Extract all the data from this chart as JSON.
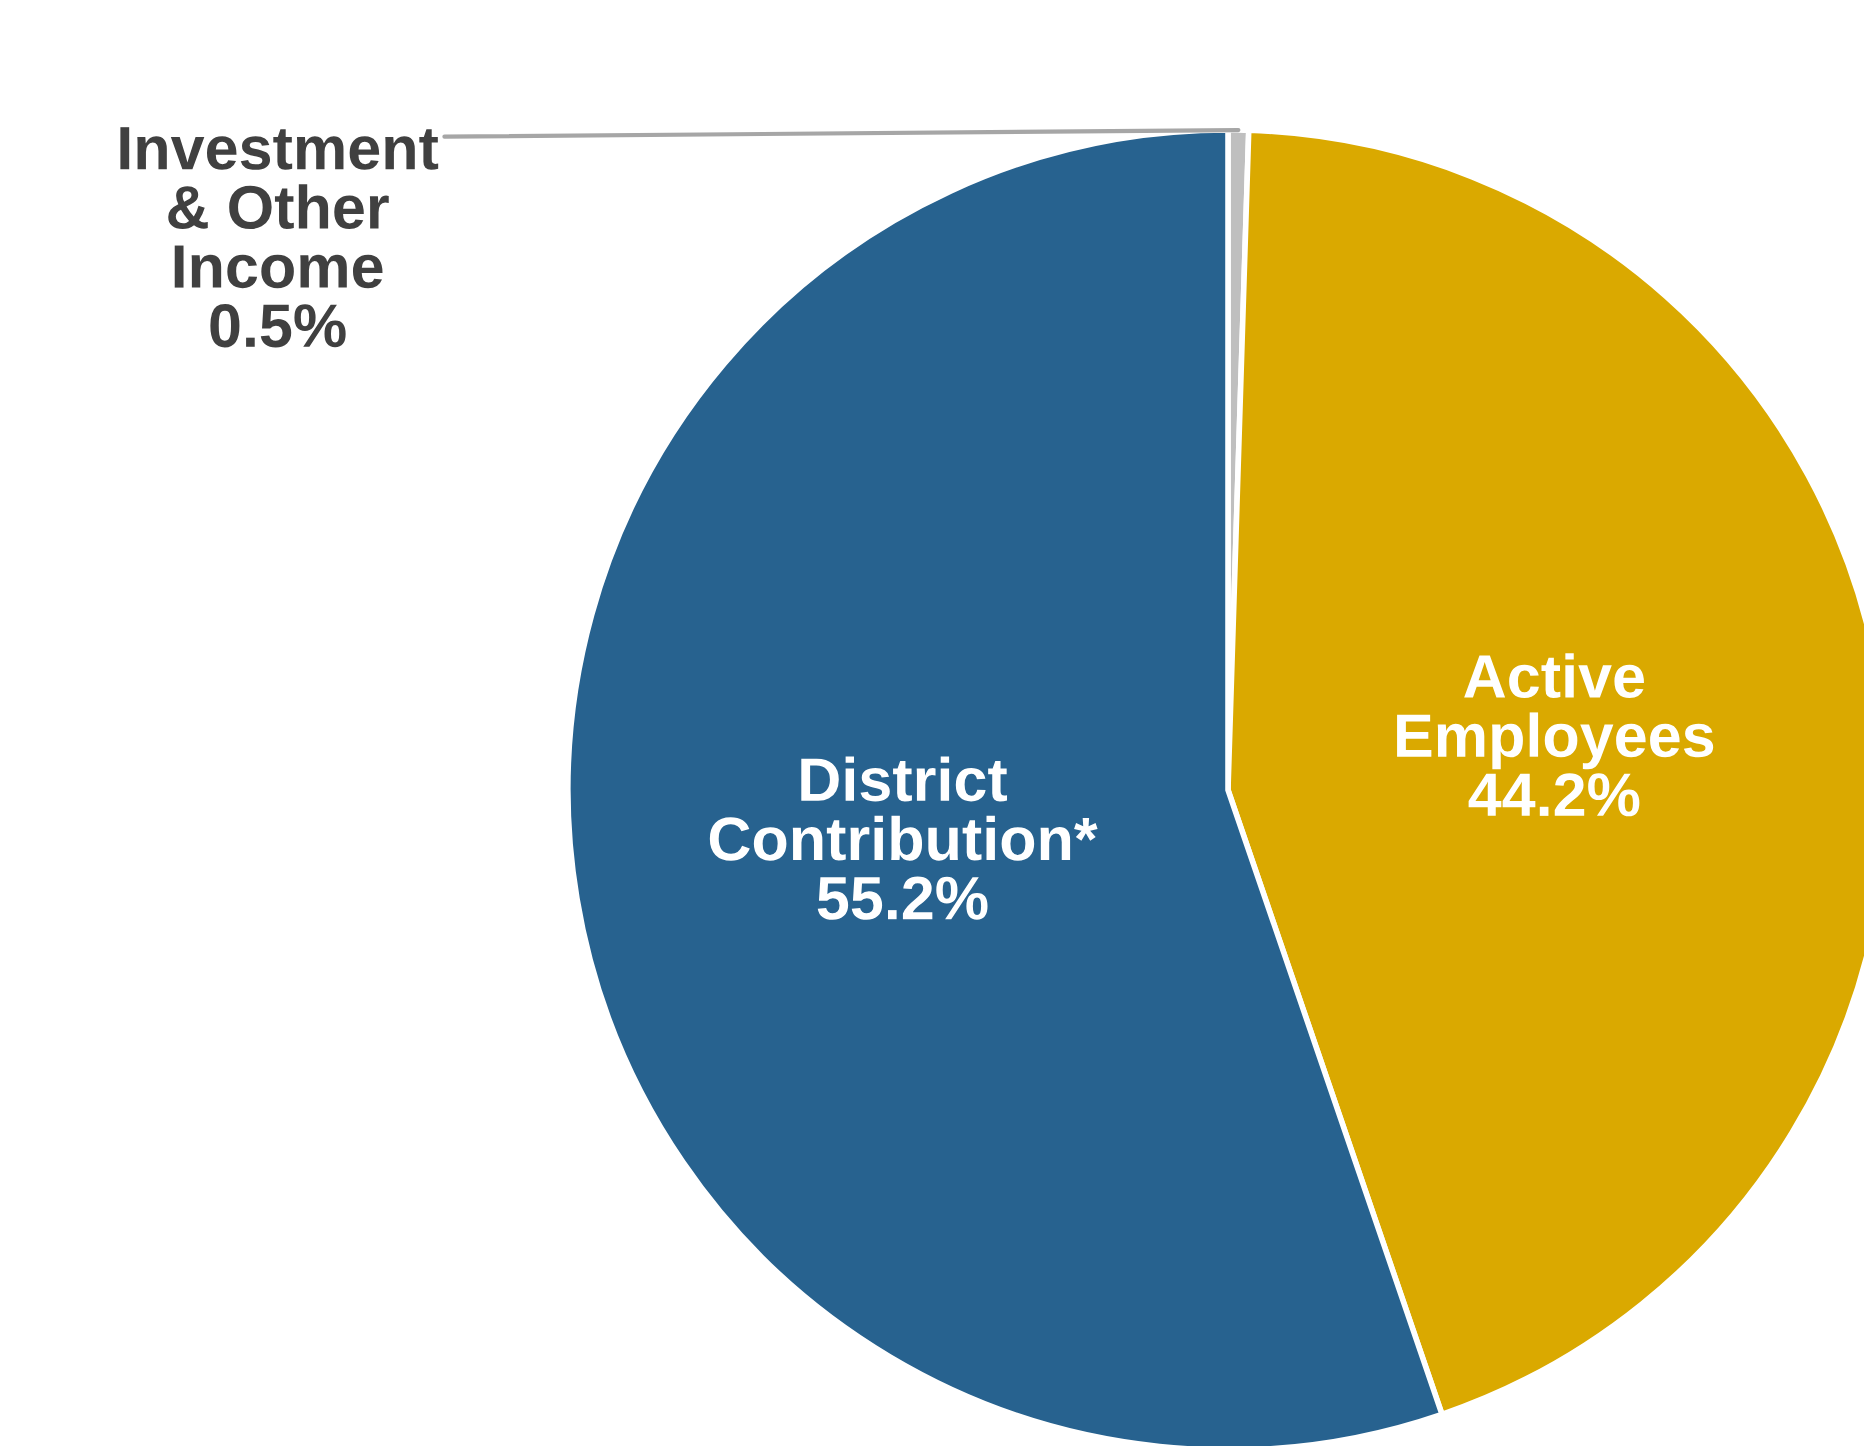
{
  "chart_data": {
    "type": "pie",
    "categories": [
      "Investment\n& Other\nIncome",
      "Active\nEmployees",
      "District\nContribution*"
    ],
    "values": [
      0.5,
      44.2,
      55.2
    ],
    "colors": [
      "#bfbfbf",
      "#daa900",
      "#27628f"
    ],
    "value_labels": [
      "0.5%",
      "44.2%",
      "55.2%"
    ]
  }
}
